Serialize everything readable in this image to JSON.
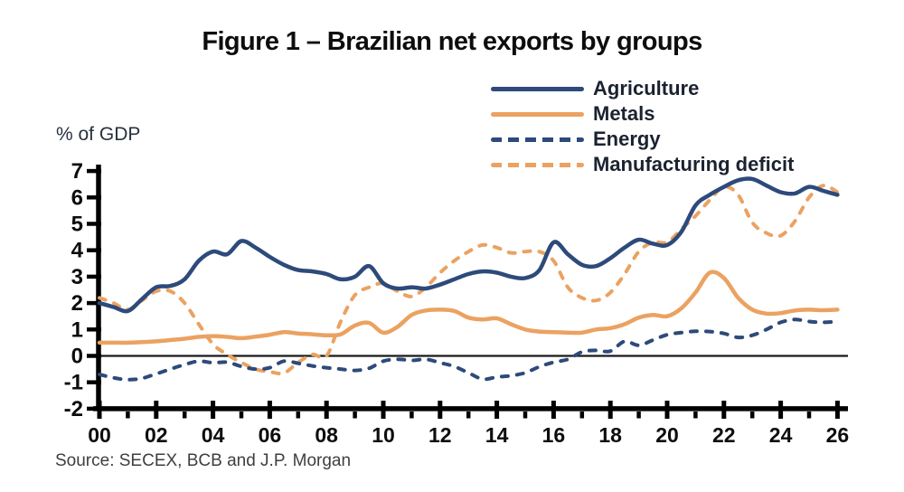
{
  "title": "Figure 1 – Brazilian net exports by groups",
  "y_axis_label": "% of GDP",
  "source": "Source: SECEX, BCB and J.P. Morgan",
  "colors": {
    "navy": "#2d4a7a",
    "orange": "#eba261",
    "axis": "#000000",
    "zero_line": "#1a1a1a",
    "tick_text": "#0d0d0d",
    "legend_text": "#1b2230",
    "source_text": "#3f3f3f"
  },
  "legend": [
    {
      "label": "Agriculture",
      "style": "solid",
      "color": "#2d4a7a"
    },
    {
      "label": "Metals",
      "style": "solid",
      "color": "#eba261"
    },
    {
      "label": "Energy",
      "style": "dashed",
      "color": "#2d4a7a"
    },
    {
      "label": "Manufacturing deficit",
      "style": "dashed",
      "color": "#eba261"
    }
  ],
  "chart_data": {
    "type": "line",
    "title": "Figure 1 – Brazilian net exports by groups",
    "ylabel": "% of GDP",
    "ylim": [
      -2,
      7
    ],
    "y_ticks": [
      7,
      6,
      5,
      4,
      3,
      2,
      1,
      0,
      -1,
      -2
    ],
    "x_major_tick_years": [
      0,
      2,
      4,
      6,
      8,
      10,
      12,
      14,
      16,
      18,
      20,
      22,
      24,
      26
    ],
    "x_tick_labels": [
      "00",
      "02",
      "04",
      "06",
      "08",
      "10",
      "12",
      "14",
      "16",
      "18",
      "20",
      "22",
      "24",
      "26"
    ],
    "x_minor_tick_years": [
      1,
      3,
      5,
      7,
      9,
      11,
      13,
      15,
      17,
      19,
      21,
      23,
      25
    ],
    "x_start_year": 0,
    "x_step_years": 0.5,
    "grid": false,
    "legend_position": "top-right",
    "zero_line": true,
    "series": [
      {
        "name": "Agriculture",
        "style": "solid",
        "color": "#2d4a7a",
        "values": [
          2.0,
          1.85,
          1.7,
          2.15,
          2.6,
          2.65,
          2.9,
          3.6,
          3.95,
          3.85,
          4.35,
          4.1,
          3.75,
          3.45,
          3.25,
          3.2,
          3.1,
          2.9,
          3.0,
          3.4,
          2.75,
          2.55,
          2.6,
          2.55,
          2.7,
          2.9,
          3.1,
          3.2,
          3.15,
          3.0,
          2.95,
          3.25,
          4.3,
          3.85,
          3.45,
          3.4,
          3.7,
          4.1,
          4.4,
          4.25,
          4.2,
          4.7,
          5.7,
          6.1,
          6.4,
          6.65,
          6.7,
          6.45,
          6.2,
          6.15,
          6.4,
          6.25,
          6.1
        ]
      },
      {
        "name": "Metals",
        "style": "solid",
        "color": "#eba261",
        "values": [
          0.5,
          0.5,
          0.5,
          0.52,
          0.55,
          0.6,
          0.65,
          0.72,
          0.75,
          0.72,
          0.67,
          0.73,
          0.8,
          0.9,
          0.85,
          0.82,
          0.78,
          0.82,
          1.15,
          1.25,
          0.88,
          1.1,
          1.55,
          1.72,
          1.75,
          1.7,
          1.45,
          1.38,
          1.42,
          1.2,
          1.0,
          0.92,
          0.9,
          0.88,
          0.88,
          1.0,
          1.05,
          1.2,
          1.45,
          1.55,
          1.5,
          1.8,
          2.4,
          3.15,
          2.95,
          2.2,
          1.75,
          1.6,
          1.62,
          1.72,
          1.75,
          1.73,
          1.75
        ]
      },
      {
        "name": "Energy",
        "style": "dashed",
        "color": "#2d4a7a",
        "values": [
          -0.7,
          -0.83,
          -0.9,
          -0.85,
          -0.68,
          -0.5,
          -0.33,
          -0.2,
          -0.26,
          -0.24,
          -0.4,
          -0.5,
          -0.45,
          -0.2,
          -0.28,
          -0.38,
          -0.45,
          -0.5,
          -0.55,
          -0.47,
          -0.2,
          -0.13,
          -0.17,
          -0.13,
          -0.26,
          -0.4,
          -0.64,
          -0.88,
          -0.8,
          -0.75,
          -0.64,
          -0.41,
          -0.24,
          -0.13,
          0.15,
          0.21,
          0.18,
          0.55,
          0.4,
          0.6,
          0.8,
          0.88,
          0.93,
          0.92,
          0.85,
          0.7,
          0.78,
          1.0,
          1.27,
          1.38,
          1.3,
          1.27,
          1.3
        ]
      },
      {
        "name": "Manufacturing deficit",
        "style": "dashed",
        "color": "#eba261",
        "values": [
          2.2,
          2.0,
          1.75,
          2.1,
          2.45,
          2.45,
          2.0,
          1.2,
          0.45,
          0.05,
          -0.25,
          -0.5,
          -0.6,
          -0.65,
          -0.25,
          0.05,
          0.0,
          1.3,
          2.3,
          2.6,
          2.75,
          2.45,
          2.25,
          2.6,
          3.15,
          3.6,
          3.95,
          4.2,
          4.1,
          3.9,
          3.95,
          3.95,
          3.6,
          2.6,
          2.2,
          2.1,
          2.4,
          3.1,
          3.95,
          4.3,
          4.3,
          4.8,
          5.3,
          5.9,
          6.4,
          6.1,
          5.05,
          4.65,
          4.55,
          5.1,
          6.0,
          6.45,
          6.2
        ]
      }
    ]
  }
}
